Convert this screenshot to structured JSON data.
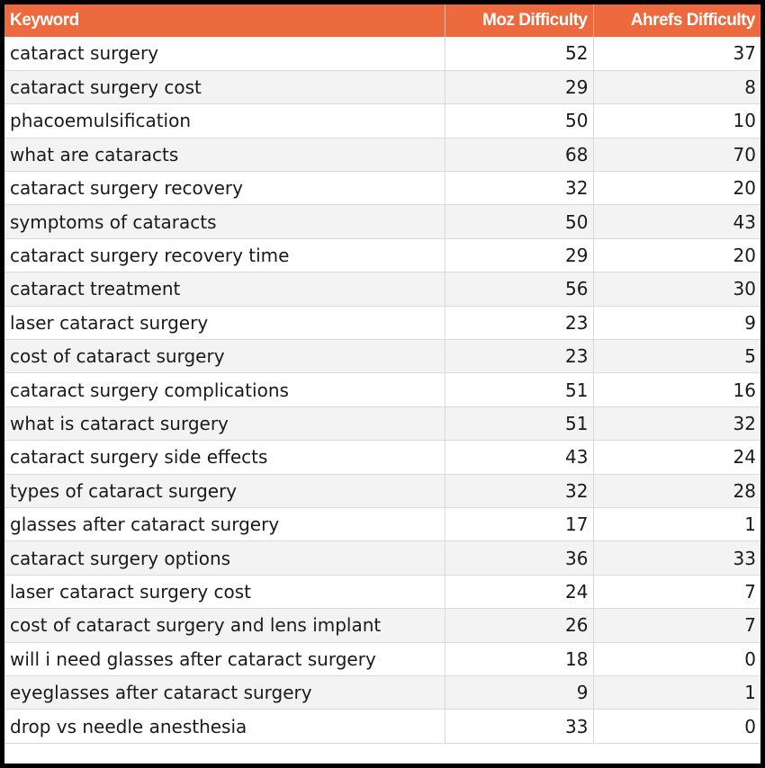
{
  "colors": {
    "header_bg": "#ec6a3e",
    "header_text": "#ffffff",
    "stripe": "#f3f3f3",
    "border": "#000000"
  },
  "headers": {
    "keyword": "Keyword",
    "moz": "Moz Difficulty",
    "ahrefs": "Ahrefs Difficulty"
  },
  "rows": [
    {
      "keyword": "cataract surgery",
      "moz": "52",
      "ahrefs": "37"
    },
    {
      "keyword": "cataract surgery cost",
      "moz": "29",
      "ahrefs": "8"
    },
    {
      "keyword": "phacoemulsification",
      "moz": "50",
      "ahrefs": "10"
    },
    {
      "keyword": "what are cataracts",
      "moz": "68",
      "ahrefs": "70"
    },
    {
      "keyword": "cataract surgery recovery",
      "moz": "32",
      "ahrefs": "20"
    },
    {
      "keyword": "symptoms of cataracts",
      "moz": "50",
      "ahrefs": "43"
    },
    {
      "keyword": "cataract surgery recovery time",
      "moz": "29",
      "ahrefs": "20"
    },
    {
      "keyword": "cataract treatment",
      "moz": "56",
      "ahrefs": "30"
    },
    {
      "keyword": "laser cataract surgery",
      "moz": "23",
      "ahrefs": "9"
    },
    {
      "keyword": "cost of cataract surgery",
      "moz": "23",
      "ahrefs": "5"
    },
    {
      "keyword": "cataract surgery complications",
      "moz": "51",
      "ahrefs": "16"
    },
    {
      "keyword": "what is cataract surgery",
      "moz": "51",
      "ahrefs": "32"
    },
    {
      "keyword": "cataract surgery side effects",
      "moz": "43",
      "ahrefs": "24"
    },
    {
      "keyword": "types of cataract surgery",
      "moz": "32",
      "ahrefs": "28"
    },
    {
      "keyword": "glasses after cataract surgery",
      "moz": "17",
      "ahrefs": "1"
    },
    {
      "keyword": "cataract surgery options",
      "moz": "36",
      "ahrefs": "33"
    },
    {
      "keyword": "laser cataract surgery cost",
      "moz": "24",
      "ahrefs": "7"
    },
    {
      "keyword": "cost of cataract surgery and lens implant",
      "moz": "26",
      "ahrefs": "7"
    },
    {
      "keyword": "will i need glasses after cataract surgery",
      "moz": "18",
      "ahrefs": "0"
    },
    {
      "keyword": "eyeglasses after cataract surgery",
      "moz": "9",
      "ahrefs": "1"
    },
    {
      "keyword": "drop vs needle anesthesia",
      "moz": "33",
      "ahrefs": "0"
    }
  ]
}
